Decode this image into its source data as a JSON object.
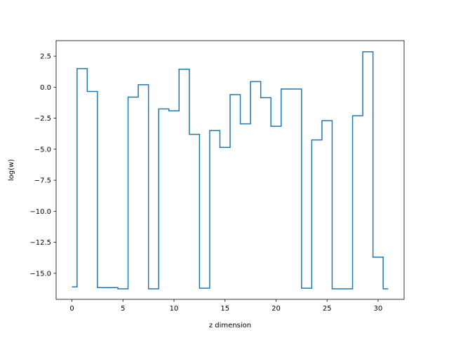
{
  "chart_data": {
    "type": "line",
    "drawstyle": "steps-mid",
    "title": "",
    "xlabel": "z dimension",
    "ylabel": "log(w)",
    "xlim": [
      -1.55,
      32.55
    ],
    "ylim": [
      -17.1,
      3.75
    ],
    "xticks": [
      0,
      5,
      10,
      15,
      20,
      25,
      30
    ],
    "xtick_labels": [
      "0",
      "5",
      "10",
      "15",
      "20",
      "25",
      "30"
    ],
    "yticks": [
      2.5,
      0.0,
      -2.5,
      -5.0,
      -7.5,
      -10.0,
      -12.5,
      -15.0
    ],
    "ytick_labels": [
      "2.5",
      "0.0",
      "−2.5",
      "−5.0",
      "−7.5",
      "−10.0",
      "−12.5",
      "−15.0"
    ],
    "grid": false,
    "legend": "none",
    "series": [
      {
        "color": "#1f77b4",
        "x": [
          0,
          1,
          2,
          3,
          4,
          5,
          6,
          7,
          8,
          9,
          10,
          11,
          12,
          13,
          14,
          15,
          16,
          17,
          18,
          19,
          20,
          21,
          22,
          23,
          24,
          25,
          26,
          27,
          28,
          29,
          30,
          31
        ],
        "y": [
          -16.1,
          1.5,
          -0.35,
          -16.15,
          -16.15,
          -16.25,
          -0.8,
          0.2,
          -16.25,
          -1.75,
          -1.9,
          1.45,
          -3.8,
          -16.2,
          -3.5,
          -4.85,
          -0.6,
          -2.95,
          0.45,
          -0.85,
          -3.15,
          -0.15,
          -0.15,
          -16.2,
          -4.25,
          -2.7,
          -16.25,
          -16.25,
          -2.3,
          2.85,
          -13.7,
          -16.25
        ]
      }
    ]
  }
}
